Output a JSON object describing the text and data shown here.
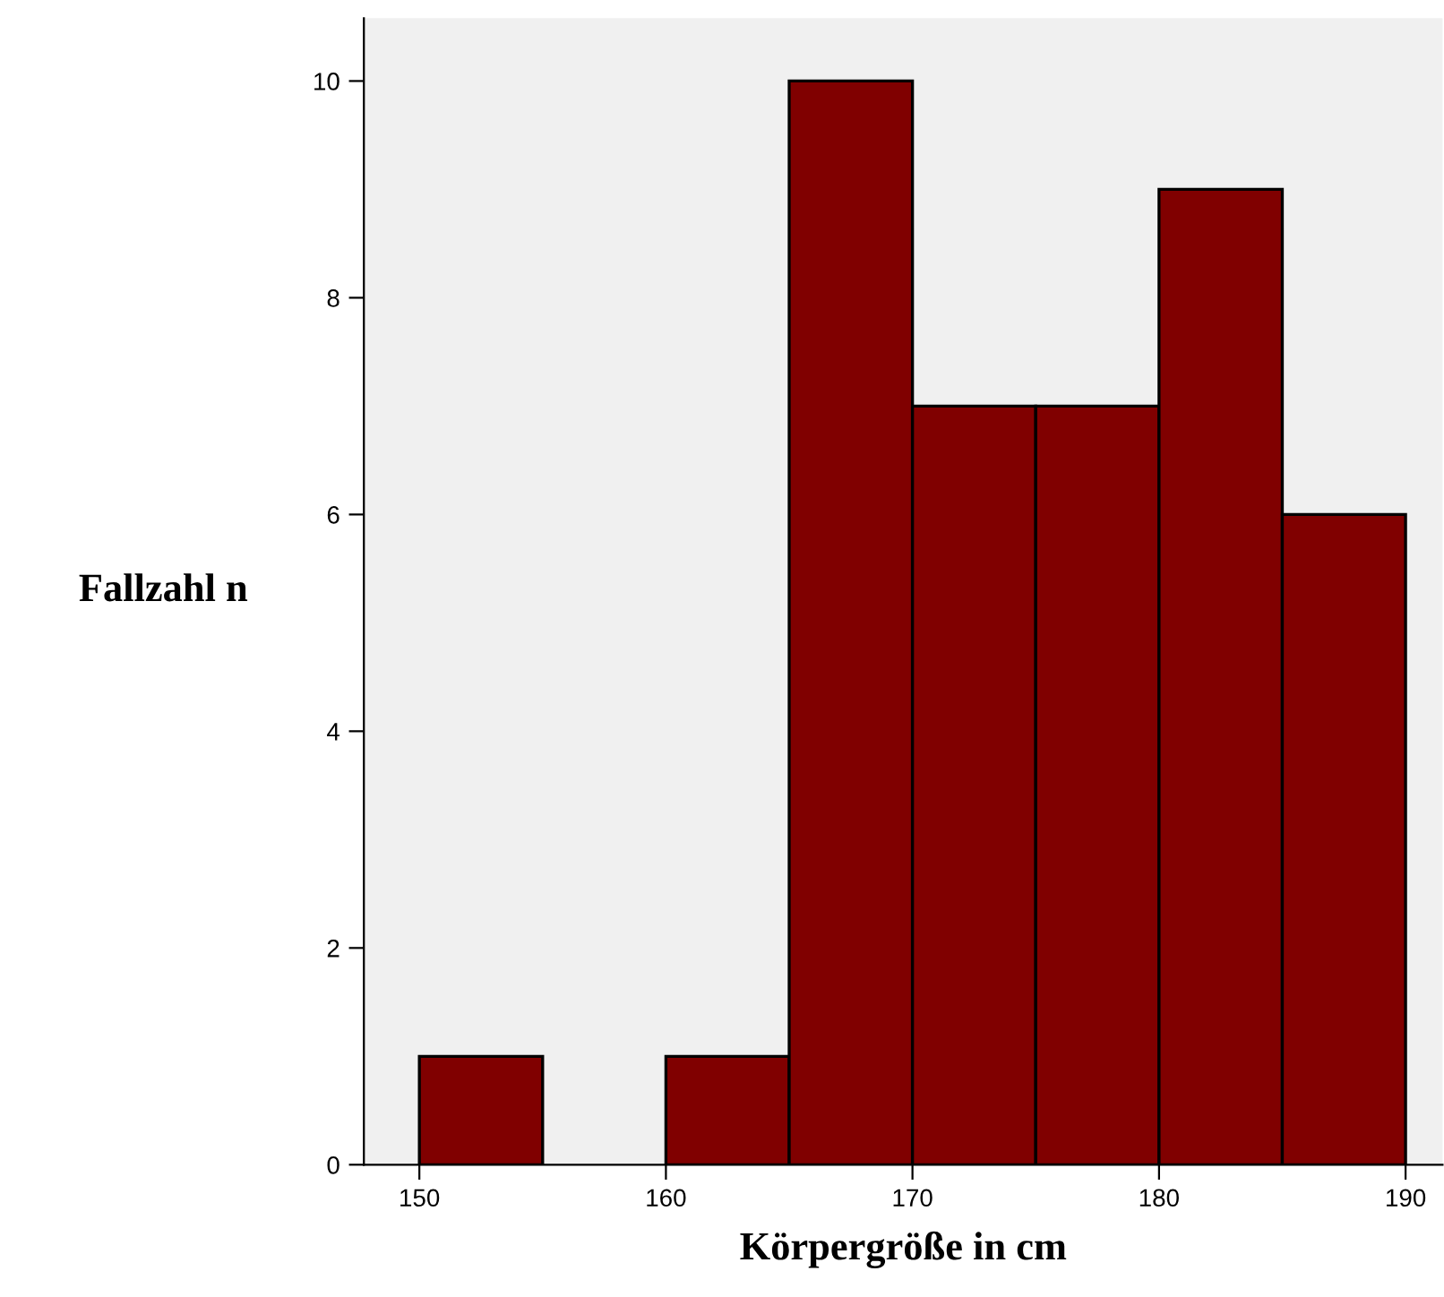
{
  "chart_data": {
    "type": "histogram",
    "xlabel": "Körpergröße in cm",
    "ylabel": "Fallzahl n",
    "bins": [
      150,
      155,
      160,
      165,
      170,
      175,
      180,
      185,
      190
    ],
    "values": [
      1,
      0,
      1,
      10,
      7,
      7,
      9,
      6
    ],
    "color": "#800000",
    "xlim": [
      147.75,
      191.5
    ],
    "xticks": [
      150,
      160,
      170,
      180,
      190
    ],
    "ylim": [
      0,
      10.58
    ],
    "yticks": [
      0,
      2,
      4,
      6,
      8,
      10
    ],
    "grid": false
  }
}
